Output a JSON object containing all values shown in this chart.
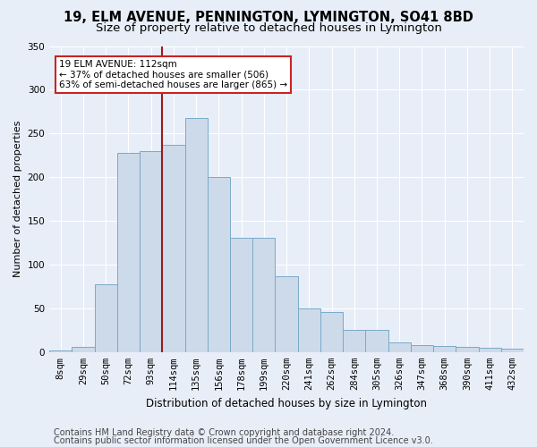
{
  "title1": "19, ELM AVENUE, PENNINGTON, LYMINGTON, SO41 8BD",
  "title2": "Size of property relative to detached houses in Lymington",
  "xlabel": "Distribution of detached houses by size in Lymington",
  "ylabel": "Number of detached properties",
  "bin_labels": [
    "8sqm",
    "29sqm",
    "50sqm",
    "72sqm",
    "93sqm",
    "114sqm",
    "135sqm",
    "156sqm",
    "178sqm",
    "199sqm",
    "220sqm",
    "241sqm",
    "262sqm",
    "284sqm",
    "305sqm",
    "326sqm",
    "347sqm",
    "368sqm",
    "390sqm",
    "411sqm",
    "432sqm"
  ],
  "bar_values": [
    2,
    6,
    78,
    228,
    230,
    237,
    268,
    200,
    131,
    131,
    87,
    50,
    46,
    25,
    25,
    11,
    8,
    7,
    6,
    5,
    4
  ],
  "bar_color": "#ccdaea",
  "bar_edge_color": "#7aaac8",
  "vline_x": 5.0,
  "vline_color": "#9b1b1b",
  "annotation_text": "19 ELM AVENUE: 112sqm\n← 37% of detached houses are smaller (506)\n63% of semi-detached houses are larger (865) →",
  "box_facecolor": "white",
  "box_edgecolor": "#cc2222",
  "ylim": [
    0,
    350
  ],
  "yticks": [
    0,
    50,
    100,
    150,
    200,
    250,
    300,
    350
  ],
  "footer1": "Contains HM Land Registry data © Crown copyright and database right 2024.",
  "footer2": "Contains public sector information licensed under the Open Government Licence v3.0.",
  "bg_color": "#e8eef8",
  "plot_bg_color": "#e8eef8",
  "grid_color": "white",
  "title1_fontsize": 10.5,
  "title2_fontsize": 9.5,
  "xlabel_fontsize": 8.5,
  "ylabel_fontsize": 8,
  "tick_fontsize": 7.5,
  "annotation_fontsize": 7.5,
  "footer_fontsize": 7
}
